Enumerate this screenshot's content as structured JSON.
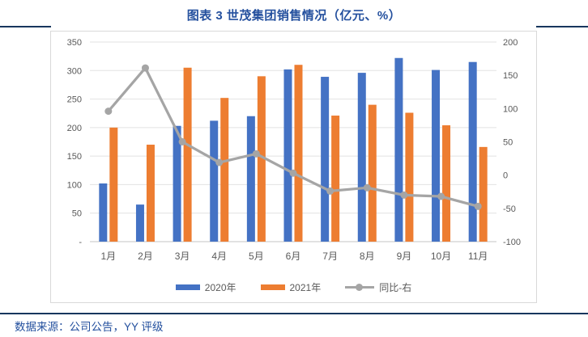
{
  "title": "图表 3  世茂集团销售情况（亿元、%）",
  "source_note": "数据来源：公司公告，YY 评级",
  "colors": {
    "bar_2020": "#4472C4",
    "bar_2021": "#ED7D31",
    "line_yoy": "#A5A5A5",
    "title_blue": "#24509E",
    "rule_navy": "#17365D",
    "axis_text": "#595959",
    "gridline": "#E2E2E2",
    "chart_border": "#D9D9D9"
  },
  "legend": [
    {
      "label": "2020年",
      "marker": "bar-swatch",
      "color": "#4472C4"
    },
    {
      "label": "2021年",
      "marker": "bar-swatch",
      "color": "#ED7D31"
    },
    {
      "label": "同比-右",
      "marker": "line-swatch",
      "color": "#A5A5A5"
    }
  ],
  "chart_data": {
    "type": "combo",
    "title": "图表 3  世茂集团销售情况（亿元、%）",
    "categories": [
      "1月",
      "2月",
      "3月",
      "4月",
      "5月",
      "6月",
      "7月",
      "8月",
      "9月",
      "10月",
      "11月"
    ],
    "series": [
      {
        "name": "2020年",
        "type": "bar",
        "axis": "left",
        "color": "#4472C4",
        "values": [
          102,
          65,
          203,
          212,
          220,
          302,
          289,
          296,
          322,
          301,
          315
        ]
      },
      {
        "name": "2021年",
        "type": "bar",
        "axis": "left",
        "color": "#ED7D31",
        "values": [
          200,
          170,
          305,
          252,
          290,
          310,
          221,
          240,
          226,
          204,
          166
        ]
      },
      {
        "name": "同比-右",
        "type": "line",
        "axis": "right",
        "color": "#A5A5A5",
        "values": [
          96,
          161,
          50,
          19,
          32,
          3,
          -24,
          -19,
          -30,
          -32,
          -47
        ]
      }
    ],
    "left_axis": {
      "min": 0,
      "max": 350,
      "step": 50,
      "tick_labels": [
        "-",
        "50",
        "100",
        "150",
        "200",
        "250",
        "300",
        "350"
      ]
    },
    "right_axis": {
      "min": -100,
      "max": 200,
      "step": 50,
      "tick_labels": [
        "-100",
        "-50",
        "0",
        "50",
        "100",
        "150",
        "200"
      ]
    },
    "grid": true,
    "legend_position": "bottom"
  }
}
